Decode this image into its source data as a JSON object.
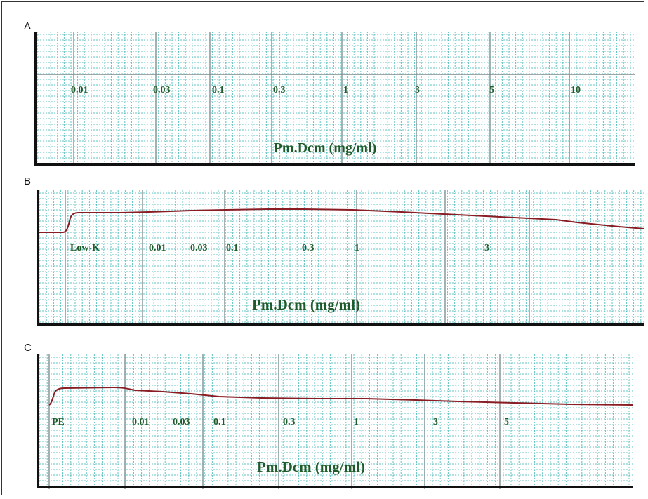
{
  "panels": [
    {
      "label": "A",
      "xlabel": "Pm.Dcm (mg/ml)",
      "ticks": [
        "0.01",
        "0.03",
        "0.1",
        "0.3",
        "1",
        "3",
        "5",
        "10"
      ]
    },
    {
      "label": "B",
      "xlabel": "Pm.Dcm (mg/ml)",
      "ticks": [
        "Low-K",
        "0.01",
        "0.03",
        "0.1",
        "0.3",
        "1",
        "3"
      ]
    },
    {
      "label": "C",
      "xlabel": "Pm.Dcm (mg/ml)",
      "ticks": [
        "PE",
        "0.01",
        "0.03",
        "0.1",
        "0.3",
        "1",
        "3",
        "5"
      ]
    }
  ],
  "colors": {
    "grid": "#2fb0b0",
    "trace": "#8a1c24",
    "text": "#1f5a2a",
    "axis": "#111111"
  },
  "chart_data": [
    {
      "type": "line",
      "xlabel": "Pm.Dcm (mg/ml)",
      "categories": [
        "0.01",
        "0.03",
        "0.1",
        "0.3",
        "1",
        "3",
        "5",
        "10"
      ],
      "trace": "flat baseline, no visible response",
      "grid": true
    },
    {
      "type": "line",
      "xlabel": "Pm.Dcm (mg/ml)",
      "categories": [
        "Low-K",
        "0.01",
        "0.03",
        "0.1",
        "0.3",
        "1",
        "3"
      ],
      "relative_tension": [
        0.0,
        1.0,
        1.01,
        1.05,
        1.1,
        1.08,
        0.75
      ],
      "trace_end_relative_tension": 0.33,
      "grid": true
    },
    {
      "type": "line",
      "xlabel": "Pm.Dcm (mg/ml)",
      "categories": [
        "PE",
        "0.01",
        "0.03",
        "0.1",
        "0.3",
        "1",
        "3",
        "5"
      ],
      "relative_tension": [
        0.0,
        1.0,
        0.85,
        0.72,
        0.68,
        0.66,
        0.58,
        0.5
      ],
      "trace_end_relative_tension": 0.4,
      "grid": true
    }
  ]
}
